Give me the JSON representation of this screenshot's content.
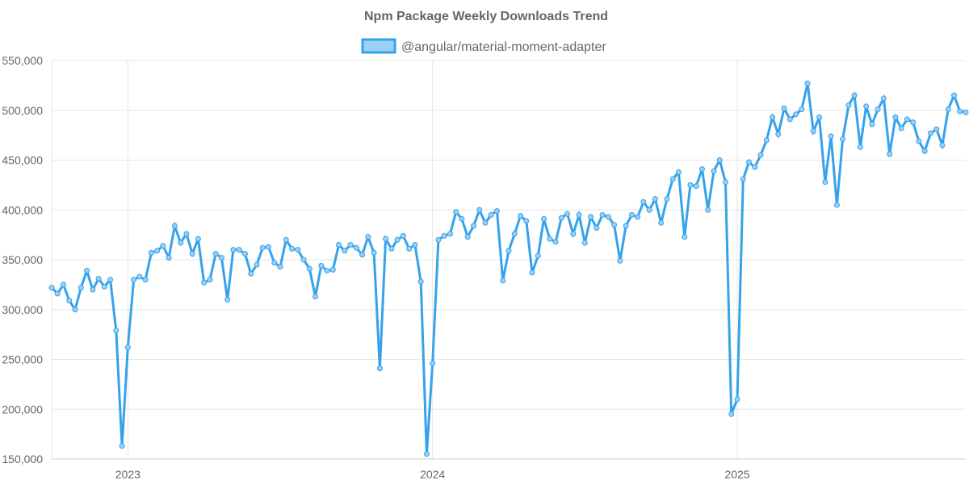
{
  "chart_data": {
    "type": "line",
    "title": "Npm Package Weekly Downloads Trend",
    "xlabel": "",
    "ylabel": "",
    "ylim": [
      150000,
      550000
    ],
    "yticks": [
      150000,
      200000,
      250000,
      300000,
      350000,
      400000,
      450000,
      500000,
      550000
    ],
    "ytick_labels": [
      "150,000",
      "200,000",
      "250,000",
      "300,000",
      "350,000",
      "400,000",
      "450,000",
      "500,000",
      "550,000"
    ],
    "x_unit": "week index",
    "xticks": [
      {
        "label": "2023",
        "week": 13
      },
      {
        "label": "2024",
        "week": 65
      },
      {
        "label": "2025",
        "week": 117
      }
    ],
    "grid": true,
    "legend_position": "top-center",
    "colors": {
      "line": "#36a2eb",
      "fill": "#9ad0f5",
      "grid": "#e5e5e5",
      "text": "#666666"
    },
    "series": [
      {
        "name": "@angular/material-moment-adapter",
        "values": [
          322000,
          316000,
          325000,
          309000,
          300000,
          322000,
          339000,
          320000,
          331000,
          323000,
          330000,
          279000,
          163000,
          262000,
          330000,
          333000,
          330000,
          357000,
          359000,
          364000,
          352000,
          384000,
          367000,
          376000,
          356000,
          371000,
          327000,
          330000,
          356000,
          352000,
          310000,
          360000,
          360000,
          356000,
          336000,
          345000,
          362000,
          363000,
          347000,
          343000,
          370000,
          361000,
          360000,
          350000,
          341000,
          313000,
          344000,
          339000,
          340000,
          365000,
          359000,
          365000,
          362000,
          355000,
          373000,
          357000,
          241000,
          371000,
          361000,
          370000,
          374000,
          361000,
          365000,
          328000,
          155000,
          246000,
          370000,
          374000,
          376000,
          398000,
          391000,
          373000,
          384000,
          400000,
          387000,
          395000,
          399000,
          329000,
          359000,
          376000,
          394000,
          389000,
          337000,
          354000,
          391000,
          371000,
          368000,
          392000,
          396000,
          376000,
          395000,
          367000,
          393000,
          382000,
          395000,
          393000,
          385000,
          349000,
          384000,
          395000,
          393000,
          408000,
          400000,
          411000,
          387000,
          411000,
          431000,
          438000,
          373000,
          425000,
          424000,
          441000,
          400000,
          439000,
          450000,
          428000,
          195000,
          210000,
          431000,
          448000,
          443000,
          455000,
          470000,
          493000,
          476000,
          502000,
          491000,
          496000,
          501000,
          527000,
          479000,
          493000,
          428000,
          474000,
          405000,
          471000,
          505000,
          515000,
          463000,
          504000,
          486000,
          501000,
          512000,
          456000,
          493000,
          482000,
          491000,
          488000,
          469000,
          459000,
          477000,
          481000,
          465000,
          501000,
          515000,
          499000,
          498000
        ]
      }
    ]
  }
}
